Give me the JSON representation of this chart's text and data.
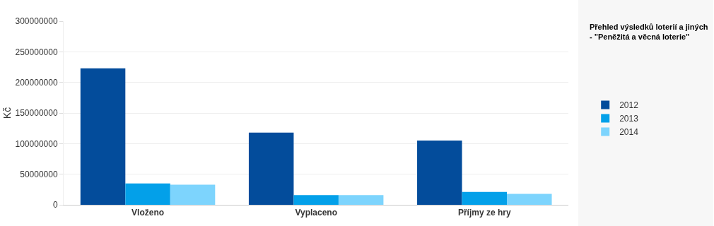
{
  "chart_data": {
    "type": "bar",
    "title": "Přehled výsledků loterií a jiných\n- \"Peněžitá a věcná loterie\"",
    "ylabel": "Kč",
    "categories": [
      "Vloženo",
      "Vyplaceno",
      "Příjmy ze hry"
    ],
    "series": [
      {
        "name": "2012",
        "color": "#034c9b",
        "values": [
          223000000,
          118000000,
          105000000
        ]
      },
      {
        "name": "2013",
        "color": "#03a0e9",
        "values": [
          35000000,
          16000000,
          21000000
        ]
      },
      {
        "name": "2014",
        "color": "#7dd4fd",
        "values": [
          33000000,
          16000000,
          18000000
        ]
      }
    ],
    "ylim": [
      0,
      300000000
    ],
    "yticks": [
      0,
      50000000,
      100000000,
      150000000,
      200000000,
      250000000,
      300000000
    ],
    "grid": "y",
    "legend": "right"
  }
}
